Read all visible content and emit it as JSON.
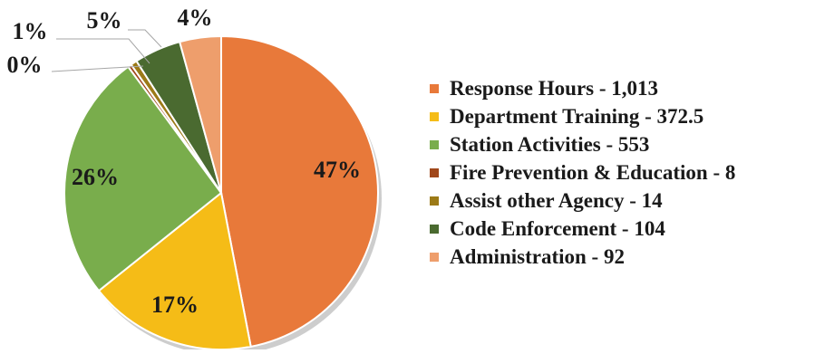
{
  "chart_data": {
    "type": "pie",
    "title": "",
    "slices": [
      {
        "label": "Response Hours - 1,013",
        "value": 1013,
        "pct_label": "47%",
        "color": "#E8793A"
      },
      {
        "label": "Department Training - 372.5",
        "value": 372.5,
        "pct_label": "17%",
        "color": "#F5BC17"
      },
      {
        "label": "Station Activities - 553",
        "value": 553,
        "pct_label": "26%",
        "color": "#79AD4C"
      },
      {
        "label": "Fire Prevention & Education - 8",
        "value": 8,
        "pct_label": "0%",
        "color": "#A0471A"
      },
      {
        "label": "Assist other Agency - 14",
        "value": 14,
        "pct_label": "1%",
        "color": "#9C7A17"
      },
      {
        "label": "Code Enforcement - 104",
        "value": 104,
        "pct_label": "5%",
        "color": "#4A6A30"
      },
      {
        "label": "Administration - 92",
        "value": 92,
        "pct_label": "4%",
        "color": "#EE9E6C"
      }
    ],
    "legend_position": "right"
  }
}
